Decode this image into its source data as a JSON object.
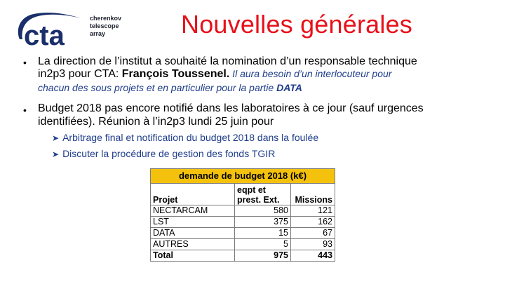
{
  "logo": {
    "mark_text": "cta",
    "words": [
      "cherenkov",
      "telescope",
      "array"
    ],
    "colors": {
      "mark": "#1a2f6b",
      "swoosh": "#1a2f6b",
      "words": "#1a1f2b"
    }
  },
  "title": "Nouvelles générales",
  "colors": {
    "title": "#e8101a",
    "body_text": "#000000",
    "sub_text": "#1f3d8a",
    "table_header_bg": "#f4c20d",
    "table_border": "#7a7a7a"
  },
  "bullets": [
    {
      "bullet_char": "•",
      "line1": "La direction de l’institut a souhaité la nomination d’un responsable technique",
      "line2_prefix": "in2p3 pour CTA: ",
      "line2_name": "François Toussenel.",
      "line2_italic": " Il aura besoin d’un interlocuteur pour",
      "line3_italic_prefix": "chacun des sous projets et en particulier pour la partie ",
      "line3_italic_emph": "DATA"
    },
    {
      "bullet_char": "•",
      "line1": "Budget 2018 pas encore notifié dans les laboratoires à ce jour (sauf urgences",
      "line2": "identifiées). Réunion à l’in2p3 lundi 25 juin pour",
      "subitems": [
        {
          "icon": "arrow-right-icon",
          "text": "Arbitrage final et notification du budget 2018 dans la foulée"
        },
        {
          "icon": "arrow-right-icon",
          "text": "Discuter la procédure de gestion des fonds TGIR"
        }
      ]
    }
  ],
  "budget_table": {
    "title": "demande de budget 2018 (k€)",
    "headers": {
      "project": "Projet",
      "eqpt_line1": "eqpt et",
      "eqpt_line2": "prest. Ext.",
      "missions": "Missions"
    },
    "rows": [
      {
        "projet": "NECTARCAM",
        "eqpt": "580",
        "missions": "121"
      },
      {
        "projet": "LST",
        "eqpt": "375",
        "missions": "162"
      },
      {
        "projet": "DATA",
        "eqpt": "15",
        "missions": "67"
      },
      {
        "projet": "AUTRES",
        "eqpt": "5",
        "missions": "93"
      }
    ],
    "total": {
      "label": "Total",
      "eqpt": "975",
      "missions": "443"
    }
  }
}
